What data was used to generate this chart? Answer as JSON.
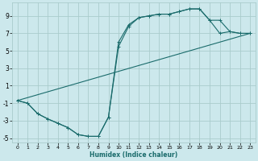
{
  "xlabel": "Humidex (Indice chaleur)",
  "bg_color": "#cce8ec",
  "grid_color": "#aacccc",
  "line_color": "#1a6b6b",
  "xlim": [
    -0.5,
    23.5
  ],
  "ylim": [
    -5.5,
    10.5
  ],
  "xticks": [
    0,
    1,
    2,
    3,
    4,
    5,
    6,
    7,
    8,
    9,
    10,
    11,
    12,
    13,
    14,
    15,
    16,
    17,
    18,
    19,
    20,
    21,
    22,
    23
  ],
  "yticks": [
    -5,
    -3,
    -1,
    1,
    3,
    5,
    7,
    9
  ],
  "line1_x": [
    0,
    1,
    2,
    3,
    4,
    5,
    6,
    7,
    8,
    9,
    10,
    11,
    12,
    13,
    14,
    15,
    16,
    17,
    18,
    19,
    20,
    21,
    22,
    23
  ],
  "line1_y": [
    -0.7,
    -1.0,
    -2.2,
    -2.8,
    -3.3,
    -3.8,
    -4.6,
    -4.8,
    -4.8,
    -2.6,
    6.0,
    8.0,
    8.8,
    9.0,
    9.2,
    9.2,
    9.5,
    9.8,
    9.8,
    8.5,
    8.5,
    7.2,
    7.0,
    7.0
  ],
  "line2_x": [
    0,
    1,
    2,
    3,
    4,
    5,
    6,
    7,
    8,
    9,
    10,
    11,
    12,
    13,
    14,
    15,
    16,
    17,
    18,
    19,
    20,
    21,
    22,
    23
  ],
  "line2_y": [
    -0.7,
    -1.0,
    -2.2,
    -2.8,
    -3.3,
    -3.8,
    -4.6,
    -4.8,
    -4.8,
    -2.6,
    5.5,
    7.8,
    8.8,
    9.0,
    9.2,
    9.2,
    9.5,
    9.8,
    9.8,
    8.5,
    7.0,
    7.2,
    7.0,
    7.0
  ],
  "line3_x": [
    0,
    23
  ],
  "line3_y": [
    -0.7,
    7.0
  ]
}
